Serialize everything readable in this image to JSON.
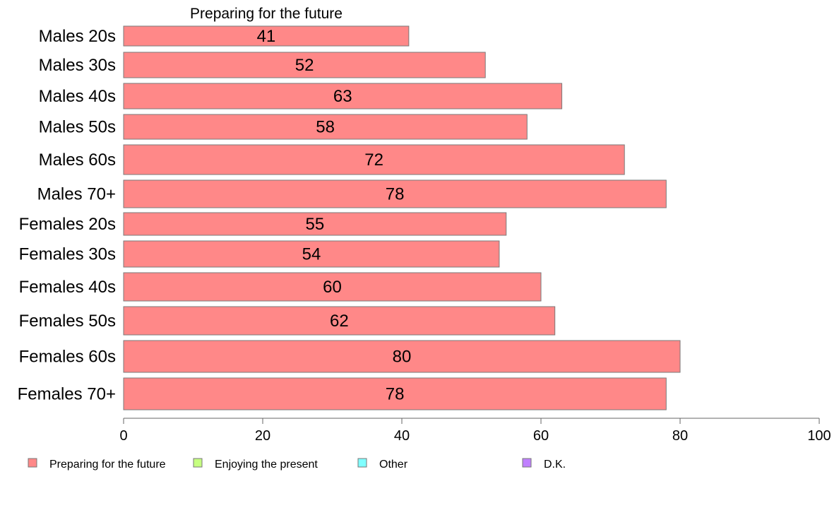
{
  "chart_data": {
    "type": "bar",
    "orientation": "horizontal",
    "title": "Preparing for the future",
    "categories": [
      "Males 20s",
      "Males 30s",
      "Males 40s",
      "Males 50s",
      "Males 60s",
      "Males 70+",
      "Females 20s",
      "Females 30s",
      "Females 40s",
      "Females 50s",
      "Females 60s",
      "Females 70+"
    ],
    "series": [
      {
        "name": "Preparing for the future",
        "values": [
          41,
          52,
          63,
          58,
          72,
          78,
          55,
          54,
          60,
          62,
          80,
          78
        ],
        "color": "#ff8888"
      }
    ],
    "xlim": [
      0,
      100
    ],
    "xticks": [
      0,
      20,
      40,
      60,
      80,
      100
    ],
    "xlabel": "",
    "ylabel": "",
    "grid": false,
    "legend": {
      "placement": "bottom",
      "entries": [
        {
          "label": "Preparing for the future",
          "color": "#ff8888"
        },
        {
          "label": "Enjoying the present",
          "color": "#c6ff80"
        },
        {
          "label": "Other",
          "color": "#80ffff"
        },
        {
          "label": "D.K.",
          "color": "#c080ff"
        }
      ]
    }
  }
}
